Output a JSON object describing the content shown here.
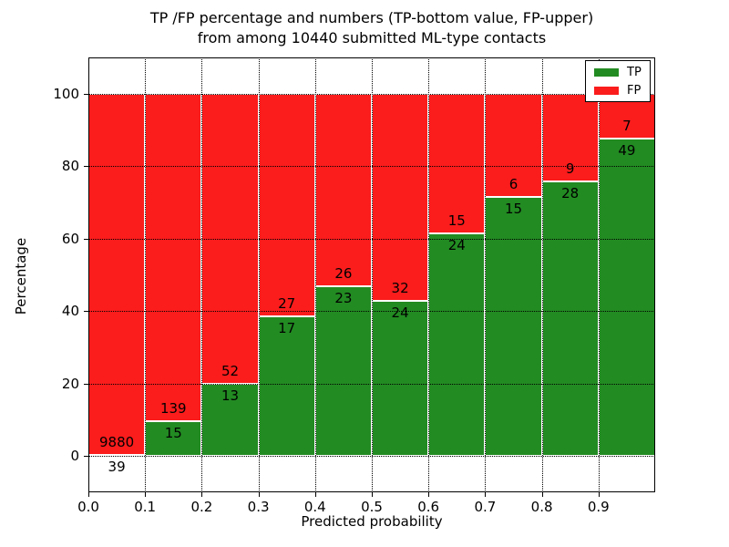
{
  "figure": {
    "title_line1": "TP /FP percentage and numbers (TP-bottom value, FP-upper)",
    "title_line2": "from among 10440 submitted ML-type contacts"
  },
  "legend": {
    "items": [
      {
        "label": "TP",
        "color": "#228b22"
      },
      {
        "label": "FP",
        "color": "#fb1c1c"
      }
    ]
  },
  "chart_data": {
    "type": "bar",
    "stacked": true,
    "title": "TP /FP percentage and numbers (TP-bottom value, FP-upper) from among 10440 submitted ML-type contacts",
    "xlabel": "Predicted probability",
    "ylabel": "Percentage",
    "xlim": [
      0.0,
      1.0
    ],
    "ylim": [
      -10,
      110
    ],
    "grid": true,
    "legend_position": "upper right",
    "total_contacts": 10440,
    "bin_width": 0.1,
    "x_tick_labels": [
      "0.0",
      "0.1",
      "0.2",
      "0.3",
      "0.4",
      "0.5",
      "0.6",
      "0.7",
      "0.8",
      "0.9"
    ],
    "x_tick_values": [
      0.0,
      0.1,
      0.2,
      0.3,
      0.4,
      0.5,
      0.6,
      0.7,
      0.8,
      0.9
    ],
    "y_tick_values": [
      0,
      20,
      40,
      60,
      80,
      100
    ],
    "categories": [
      "0.0-0.1",
      "0.1-0.2",
      "0.2-0.3",
      "0.3-0.4",
      "0.4-0.5",
      "0.5-0.6",
      "0.6-0.7",
      "0.7-0.8",
      "0.8-0.9",
      "0.9-1.0"
    ],
    "series": [
      {
        "name": "TP",
        "color": "#228b22",
        "counts": [
          39,
          15,
          13,
          17,
          23,
          24,
          24,
          15,
          28,
          49
        ],
        "percent": [
          0.39,
          9.74,
          20.0,
          38.64,
          46.94,
          42.86,
          61.54,
          71.43,
          75.68,
          87.5
        ]
      },
      {
        "name": "FP",
        "color": "#fb1c1c",
        "counts": [
          9880,
          139,
          52,
          27,
          26,
          32,
          15,
          6,
          9,
          7
        ],
        "percent": [
          99.61,
          90.26,
          80.0,
          61.36,
          53.06,
          57.14,
          38.46,
          28.57,
          24.32,
          12.5
        ]
      }
    ]
  }
}
